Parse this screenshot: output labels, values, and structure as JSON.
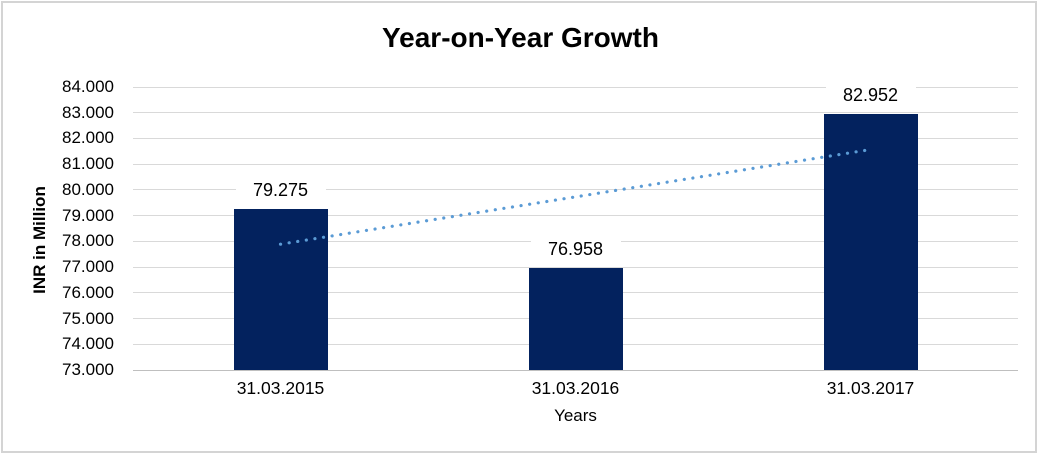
{
  "chart": {
    "colors": {
      "bar": "#03225e",
      "trendline": "#5b9bd5",
      "gridline": "#d9d9d9",
      "axis_line": "#bfbfbf",
      "text": "#000000",
      "frame_border": "#d4d4d4",
      "background": "#ffffff"
    }
  },
  "chart_data": {
    "type": "bar",
    "title": "Year-on-Year Growth",
    "xlabel": "Years",
    "ylabel": "INR in Million",
    "categories": [
      "31.03.2015",
      "31.03.2016",
      "31.03.2017"
    ],
    "values": [
      79.275,
      76.958,
      82.952
    ],
    "value_labels": [
      "79.275",
      "76.958",
      "82.952"
    ],
    "ylim": [
      73,
      84
    ],
    "ytick_step": 1,
    "ytick_labels": [
      "73.000",
      "74.000",
      "75.000",
      "76.000",
      "77.000",
      "78.000",
      "79.000",
      "80.000",
      "81.000",
      "82.000",
      "83.000",
      "84.000"
    ],
    "grid": true,
    "legend": "none",
    "trendline": {
      "type": "linear",
      "style": "dotted",
      "start_value": 77.89,
      "end_value": 81.57
    }
  }
}
